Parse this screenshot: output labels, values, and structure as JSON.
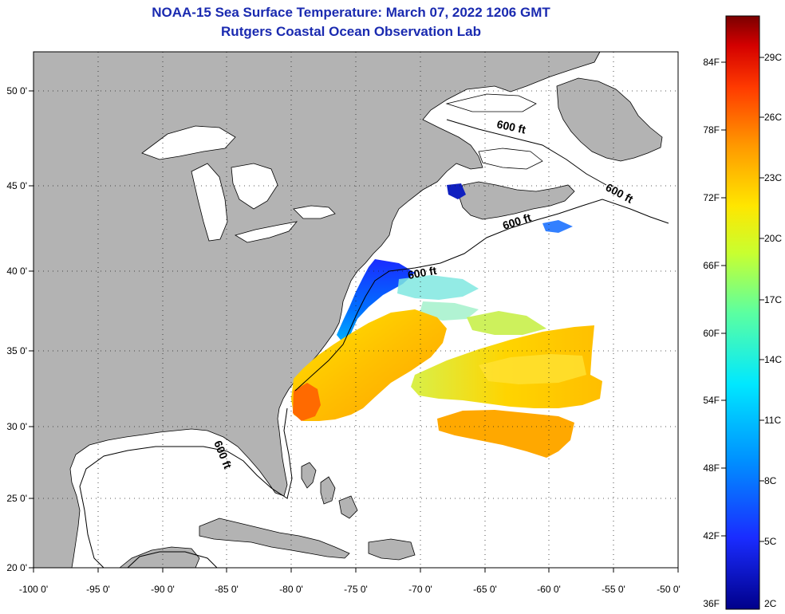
{
  "header": {
    "title_line1": "NOAA-15 Sea Surface Temperature:  March 07, 2022 1206 GMT",
    "title_line2": "Rutgers Coastal Ocean Observation Lab"
  },
  "map": {
    "lon_range": [
      -100,
      -50
    ],
    "lat_range": [
      20,
      52
    ],
    "lon_ticks": [
      "-100 0'",
      "-95 0'",
      "-90 0'",
      "-85 0'",
      "-80 0'",
      "-75 0'",
      "-70 0'",
      "-65 0'",
      "-60 0'",
      "-55 0'",
      "-50 0'"
    ],
    "lat_ticks": [
      "20 0'",
      "25 0'",
      "30 0'",
      "35 0'",
      "40 0'",
      "45 0'",
      "50 0'"
    ],
    "contour_labels": [
      "600 ft",
      "600 ft",
      "600 ft",
      "600 ft",
      "600 ft"
    ],
    "land_color": "#b3b3b3",
    "water_color": "#ffffff",
    "grid": true
  },
  "colorbar": {
    "fahrenheit_labels": [
      "84F",
      "78F",
      "72F",
      "66F",
      "60F",
      "54F",
      "48F",
      "42F",
      "36F"
    ],
    "celsius_labels": [
      "29C",
      "26C",
      "23C",
      "20C",
      "17C",
      "14C",
      "11C",
      "8C",
      "5C",
      "2C"
    ],
    "colors": [
      "#7a0000",
      "#d40000",
      "#ff3a00",
      "#ff9a00",
      "#ffe600",
      "#c8ff30",
      "#5cffa0",
      "#00e8ff",
      "#0090ff",
      "#1a2cff",
      "#00008a"
    ]
  }
}
